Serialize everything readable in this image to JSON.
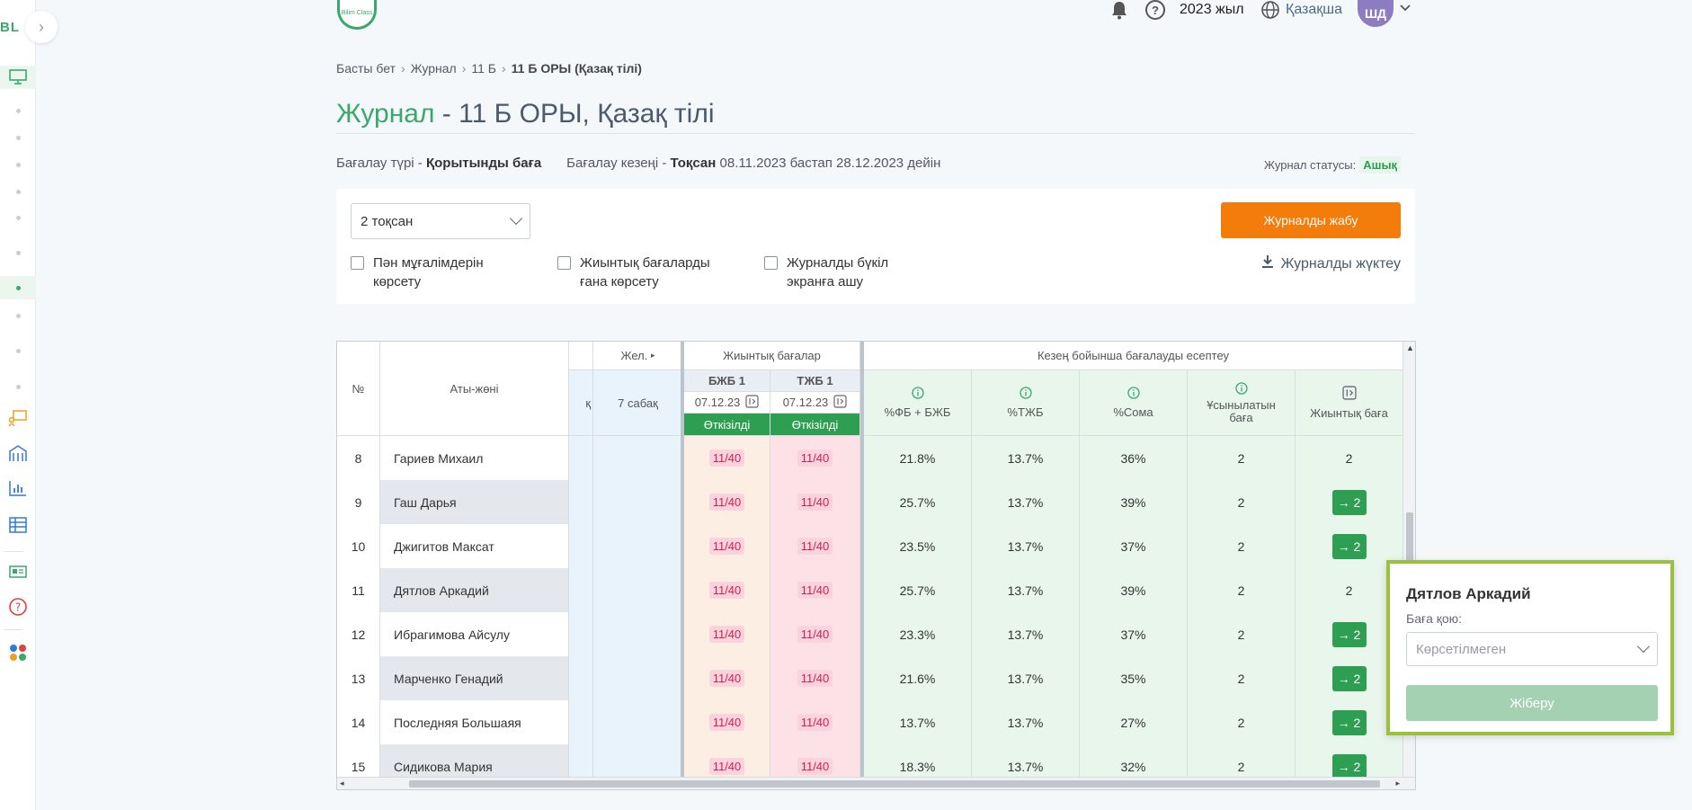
{
  "sidebar": {
    "logo": "BL",
    "toggle": "›",
    "items": [
      {
        "name": "sidebar-item-monitor",
        "icon": "▭"
      },
      {
        "name": "sidebar-item-dot-1"
      },
      {
        "name": "sidebar-item-dot-2"
      },
      {
        "name": "sidebar-item-dot-3"
      },
      {
        "name": "sidebar-item-dot-4"
      },
      {
        "name": "sidebar-item-dot-5"
      },
      {
        "name": "sidebar-item-dot-6"
      },
      {
        "name": "sidebar-item-dot-7"
      },
      {
        "name": "sidebar-item-dot-8"
      },
      {
        "name": "sidebar-item-dot-9"
      },
      {
        "name": "sidebar-item-dot-10"
      }
    ],
    "icons": [
      "presentation-icon",
      "building-icon",
      "chart-icon",
      "table-icon",
      "news-icon",
      "help-icon",
      "apps-icon"
    ]
  },
  "header": {
    "logo_text": "Bilim Class",
    "year": "2023 жыл",
    "language": "Қазақша",
    "avatar": "ШД"
  },
  "breadcrumb": [
    "Басты бет",
    "Журнал",
    "11 Б",
    "11 Б ОРЫ (Қазақ тілі)"
  ],
  "title": {
    "main": "Журнал",
    "rest": " - 11 Б ОРЫ, Қазақ тілі"
  },
  "info": {
    "assessment_type_label": "Бағалау түрі - ",
    "assessment_type": "Қорытынды баға",
    "period_label": "Бағалау кезеңі - ",
    "period": "Тоқсан",
    "period_dates": " 08.11.2023 бастап 28.12.2023 дейін",
    "status_label": "Журнал статусы:",
    "status": "Ашық"
  },
  "filters": {
    "quarter": "2 тоқсан",
    "checkbox_teachers": [
      "Пән мұғалімдерін",
      "көрсету"
    ],
    "checkbox_summative": [
      "Жиынтық бағаларды",
      "ғана көрсету"
    ],
    "checkbox_fullscreen": [
      "Журналды бүкіл",
      "экранға ашу"
    ],
    "close_button": "Журналды жабу",
    "download": "Журналды жүктеу"
  },
  "table": {
    "head": {
      "no": "№",
      "name": "Аты-жөні",
      "jel": "Жел.",
      "lessons": "7 сабақ",
      "k": "қ",
      "summative": "Жиынтық бағалар",
      "bjb": "БЖБ 1",
      "tjb": "ТЖБ 1",
      "bjb_date": "07.12.23",
      "tjb_date": "07.12.23",
      "conducted": "Өткізілді",
      "period_calc": "Кезең бойынша бағалауды есептеу",
      "pct_fb": "%ФБ + БЖБ",
      "pct_tjb": "%ТЖБ",
      "pct_sum": "%Сома",
      "suggested": "Ұсынылатын баға",
      "final": "Жиынтық баға"
    },
    "rows": [
      {
        "no": "8",
        "name": "Гариев Михаил",
        "bjb": "11/40",
        "tjb": "11/40",
        "fb": "21.8%",
        "tj": "13.7%",
        "sum": "36%",
        "sug": "2",
        "final": "2",
        "btn": false
      },
      {
        "no": "9",
        "name": "Гаш Дарья",
        "bjb": "11/40",
        "tjb": "11/40",
        "fb": "25.7%",
        "tj": "13.7%",
        "sum": "39%",
        "sug": "2",
        "final": "→ 2",
        "btn": true
      },
      {
        "no": "10",
        "name": "Джигитов Максат",
        "bjb": "11/40",
        "tjb": "11/40",
        "fb": "23.5%",
        "tj": "13.7%",
        "sum": "37%",
        "sug": "2",
        "final": "→ 2",
        "btn": true
      },
      {
        "no": "11",
        "name": "Дятлов Аркадий",
        "bjb": "11/40",
        "tjb": "11/40",
        "fb": "25.7%",
        "tj": "13.7%",
        "sum": "39%",
        "sug": "2",
        "final": "2",
        "btn": false
      },
      {
        "no": "12",
        "name": "Ибрагимова Айсулу",
        "bjb": "11/40",
        "tjb": "11/40",
        "fb": "23.3%",
        "tj": "13.7%",
        "sum": "37%",
        "sug": "2",
        "final": "→ 2",
        "btn": true
      },
      {
        "no": "13",
        "name": "Марченко Генадий",
        "bjb": "11/40",
        "tjb": "11/40",
        "fb": "21.6%",
        "tj": "13.7%",
        "sum": "35%",
        "sug": "2",
        "final": "→ 2",
        "btn": true
      },
      {
        "no": "14",
        "name": "Последняя Большаяя",
        "bjb": "11/40",
        "tjb": "11/40",
        "fb": "13.7%",
        "tj": "13.7%",
        "sum": "27%",
        "sug": "2",
        "final": "→ 2",
        "btn": true
      },
      {
        "no": "15",
        "name": "Сидикова Мария",
        "bjb": "11/40",
        "tjb": "11/40",
        "fb": "18.3%",
        "tj": "13.7%",
        "sum": "32%",
        "sug": "2",
        "final": "→ 2",
        "btn": true
      }
    ]
  },
  "popup": {
    "student": "Дятлов Аркадий",
    "label": "Баға қою:",
    "placeholder": "Көрсетілмеген",
    "send": "Жіберу"
  },
  "colors": {
    "accent": "#3aa86b",
    "orange": "#f47c0a",
    "highlight_border": "#9ac13c"
  }
}
